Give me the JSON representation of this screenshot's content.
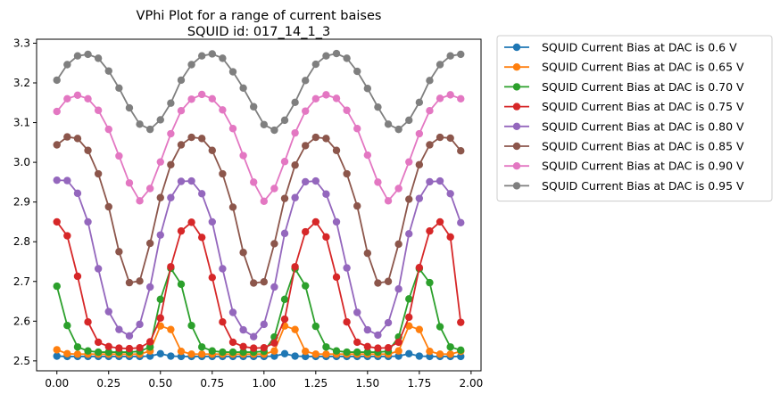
{
  "chart_data": {
    "type": "line",
    "title": "VPhi Plot for a range of current baises",
    "subtitle": "SQUID id: 017_14_1_3",
    "xlabel": "",
    "ylabel": "",
    "xlim": [
      -0.098,
      2.048
    ],
    "ylim": [
      2.475,
      3.31
    ],
    "xticks": [
      0.0,
      0.25,
      0.5,
      0.75,
      1.0,
      1.25,
      1.5,
      1.75,
      2.0
    ],
    "xtick_labels": [
      "0.00",
      "0.25",
      "0.50",
      "0.75",
      "1.00",
      "1.25",
      "1.50",
      "1.75",
      "2.00"
    ],
    "yticks": [
      2.5,
      2.6,
      2.7,
      2.8,
      2.9,
      3.0,
      3.1,
      3.2,
      3.3
    ],
    "ytick_labels": [
      "2.5",
      "2.6",
      "2.7",
      "2.8",
      "2.9",
      "3.0",
      "3.1",
      "3.2",
      "3.3"
    ],
    "grid": false,
    "legend_position": "outside-right",
    "x": [
      0.0,
      0.05,
      0.1,
      0.15,
      0.2,
      0.25,
      0.3,
      0.35,
      0.4,
      0.45,
      0.5,
      0.55,
      0.6,
      0.65,
      0.7,
      0.75,
      0.8,
      0.85,
      0.9,
      0.95,
      1.0,
      1.05,
      1.1,
      1.15,
      1.2,
      1.25,
      1.3,
      1.35,
      1.4,
      1.45,
      1.5,
      1.55,
      1.6,
      1.65,
      1.7,
      1.75,
      1.8,
      1.85,
      1.9,
      1.95
    ],
    "series": [
      {
        "name": "SQUID Current Bias at DAC is 0.6  V",
        "color": "#1f77b4",
        "values": [
          2.512,
          2.511,
          2.511,
          2.511,
          2.511,
          2.511,
          2.511,
          2.511,
          2.511,
          2.512,
          2.518,
          2.512,
          2.511,
          2.511,
          2.511,
          2.511,
          2.511,
          2.511,
          2.511,
          2.511,
          2.511,
          2.512,
          2.518,
          2.512,
          2.511,
          2.511,
          2.511,
          2.511,
          2.511,
          2.511,
          2.511,
          2.511,
          2.511,
          2.512,
          2.518,
          2.512,
          2.511,
          2.511,
          2.511,
          2.511
        ]
      },
      {
        "name": "SQUID Current Bias at DAC is 0.65 V",
        "color": "#ff7f0e",
        "values": [
          2.528,
          2.518,
          2.517,
          2.517,
          2.517,
          2.517,
          2.517,
          2.517,
          2.517,
          2.525,
          2.588,
          2.579,
          2.524,
          2.517,
          2.517,
          2.517,
          2.517,
          2.517,
          2.517,
          2.517,
          2.517,
          2.525,
          2.588,
          2.579,
          2.524,
          2.517,
          2.517,
          2.517,
          2.517,
          2.517,
          2.517,
          2.517,
          2.517,
          2.525,
          2.588,
          2.579,
          2.524,
          2.517,
          2.517,
          2.524
        ]
      },
      {
        "name": "SQUID Current Bias at DAC is 0.70 V",
        "color": "#2ca02c",
        "values": [
          2.688,
          2.589,
          2.535,
          2.525,
          2.522,
          2.522,
          2.522,
          2.522,
          2.524,
          2.535,
          2.655,
          2.733,
          2.693,
          2.589,
          2.535,
          2.525,
          2.522,
          2.522,
          2.522,
          2.522,
          2.524,
          2.56,
          2.655,
          2.732,
          2.689,
          2.587,
          2.535,
          2.525,
          2.522,
          2.522,
          2.522,
          2.522,
          2.524,
          2.56,
          2.656,
          2.732,
          2.697,
          2.586,
          2.535,
          2.527
        ]
      },
      {
        "name": "SQUID Current Bias at DAC is 0.75 V",
        "color": "#d62728",
        "values": [
          2.85,
          2.815,
          2.713,
          2.598,
          2.547,
          2.536,
          2.532,
          2.531,
          2.533,
          2.548,
          2.608,
          2.737,
          2.827,
          2.849,
          2.811,
          2.71,
          2.598,
          2.547,
          2.536,
          2.532,
          2.533,
          2.545,
          2.605,
          2.737,
          2.825,
          2.85,
          2.812,
          2.711,
          2.598,
          2.547,
          2.536,
          2.532,
          2.533,
          2.547,
          2.61,
          2.735,
          2.827,
          2.85,
          2.812,
          2.597
        ]
      },
      {
        "name": "SQUID Current Bias at DAC is 0.80 V",
        "color": "#9467bd",
        "values": [
          2.955,
          2.954,
          2.922,
          2.85,
          2.732,
          2.624,
          2.579,
          2.563,
          2.592,
          2.686,
          2.817,
          2.911,
          2.952,
          2.953,
          2.921,
          2.85,
          2.732,
          2.622,
          2.578,
          2.561,
          2.592,
          2.686,
          2.821,
          2.911,
          2.951,
          2.953,
          2.92,
          2.85,
          2.734,
          2.622,
          2.578,
          2.565,
          2.596,
          2.681,
          2.82,
          2.909,
          2.951,
          2.953,
          2.921,
          2.848
        ]
      },
      {
        "name": "SQUID Current Bias at DAC is 0.85 V",
        "color": "#8c564b",
        "values": [
          3.044,
          3.064,
          3.06,
          3.03,
          2.971,
          2.888,
          2.775,
          2.697,
          2.701,
          2.796,
          2.911,
          2.994,
          3.044,
          3.063,
          3.06,
          3.03,
          2.971,
          2.887,
          2.773,
          2.696,
          2.699,
          2.795,
          2.909,
          2.993,
          3.042,
          3.063,
          3.06,
          3.03,
          2.971,
          2.89,
          2.771,
          2.696,
          2.7,
          2.794,
          2.907,
          2.994,
          3.044,
          3.063,
          3.061,
          3.029
        ]
      },
      {
        "name": "SQUID Current Bias at DAC is 0.90 V",
        "color": "#e377c2",
        "values": [
          3.128,
          3.16,
          3.169,
          3.16,
          3.131,
          3.083,
          3.016,
          2.948,
          2.903,
          2.934,
          3.001,
          3.072,
          3.13,
          3.159,
          3.171,
          3.16,
          3.132,
          3.085,
          3.017,
          2.95,
          2.902,
          2.934,
          3.002,
          3.074,
          3.129,
          3.16,
          3.17,
          3.161,
          3.131,
          3.085,
          3.018,
          2.95,
          2.903,
          2.934,
          3.001,
          3.072,
          3.13,
          3.161,
          3.17,
          3.16
        ]
      },
      {
        "name": "SQUID Current Bias at DAC is 0.95 V",
        "color": "#7f7f7f",
        "values": [
          3.207,
          3.246,
          3.268,
          3.272,
          3.262,
          3.23,
          3.187,
          3.137,
          3.096,
          3.083,
          3.107,
          3.149,
          3.207,
          3.246,
          3.268,
          3.273,
          3.262,
          3.228,
          3.187,
          3.14,
          3.095,
          3.081,
          3.106,
          3.151,
          3.206,
          3.247,
          3.268,
          3.274,
          3.262,
          3.229,
          3.186,
          3.139,
          3.096,
          3.083,
          3.106,
          3.151,
          3.206,
          3.246,
          3.268,
          3.272
        ]
      }
    ]
  }
}
